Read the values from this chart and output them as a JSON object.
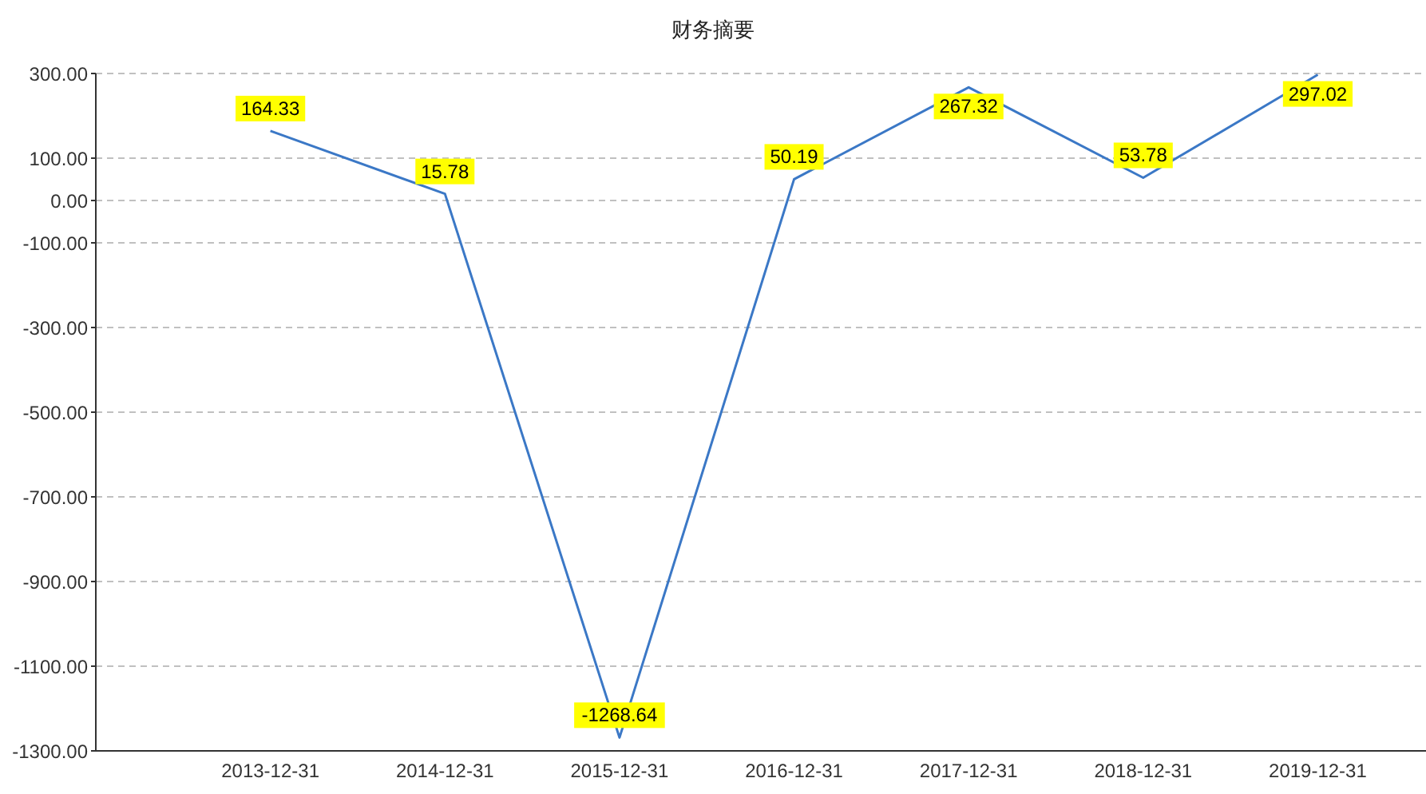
{
  "chart_data": {
    "type": "line",
    "title": "财务摘要",
    "categories": [
      "2013-12-31",
      "2014-12-31",
      "2015-12-31",
      "2016-12-31",
      "2017-12-31",
      "2018-12-31",
      "2019-12-31"
    ],
    "series": [
      {
        "color": "#3b78c6",
        "values": [
          164.33,
          15.78,
          -1268.64,
          50.19,
          267.32,
          53.78,
          297.02
        ]
      }
    ],
    "ylim": [
      -1300,
      300
    ],
    "yticks": [
      {
        "value": 300,
        "label": "300.00"
      },
      {
        "value": 100,
        "label": "100.00"
      },
      {
        "value": 0,
        "label": "0.00"
      },
      {
        "value": -100,
        "label": "-100.00"
      },
      {
        "value": -300,
        "label": "-300.00"
      },
      {
        "value": -500,
        "label": "-500.00"
      },
      {
        "value": -700,
        "label": "-700.00"
      },
      {
        "value": -900,
        "label": "-900.00"
      },
      {
        "value": -1100,
        "label": "-1100.00"
      },
      {
        "value": -1300,
        "label": "-1300.00"
      }
    ],
    "grid": "y",
    "data_labels": true,
    "marker": "none",
    "legend": false
  }
}
